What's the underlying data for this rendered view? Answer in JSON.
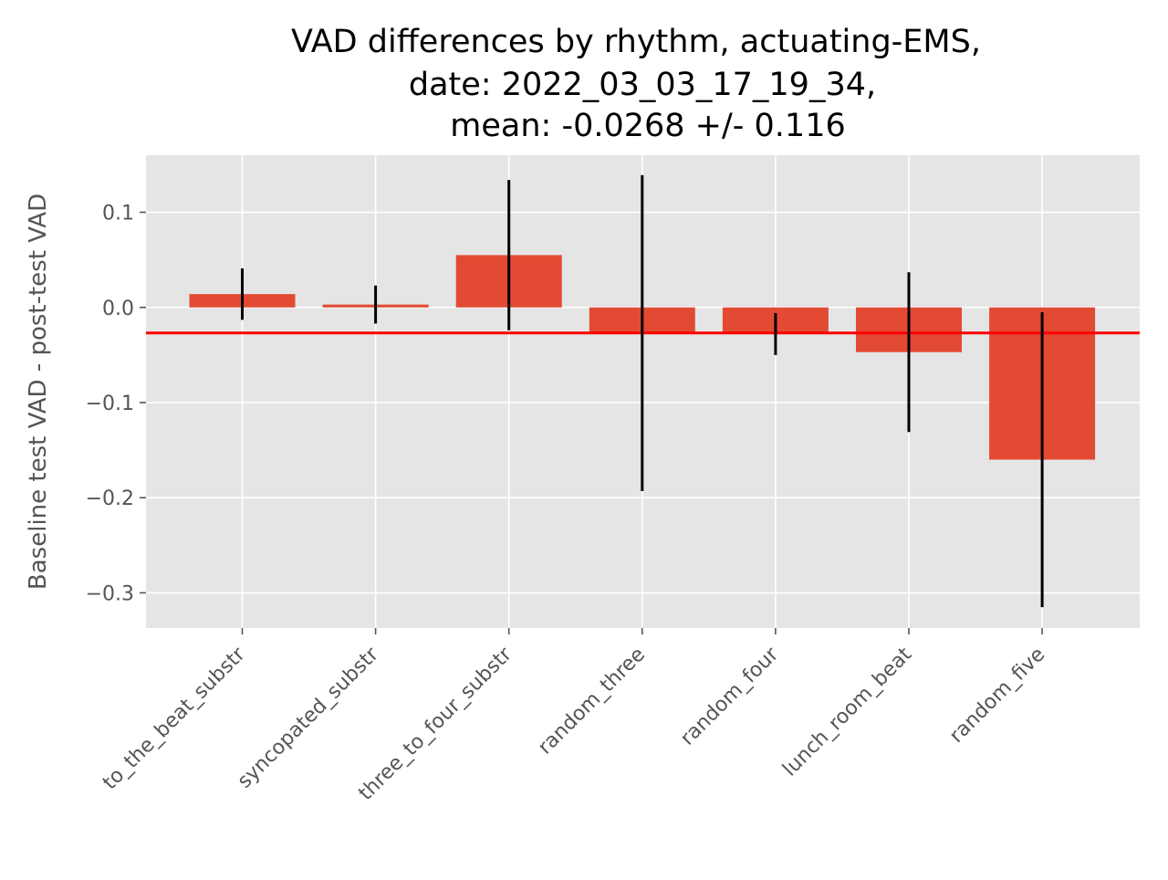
{
  "chart_data": {
    "type": "bar",
    "title_lines": [
      "VAD differences by rhythm, actuating-EMS,",
      "date: 2022_03_03_17_19_34,",
      "mean: -0.0268 +/- 0.116"
    ],
    "xlabel": "",
    "ylabel": "Baseline test VAD - post-test VAD",
    "categories": [
      "to_the_beat_substr",
      "syncopated_substr",
      "three_to_four_substr",
      "random_three",
      "random_four",
      "lunch_room_beat",
      "random_five"
    ],
    "values": [
      0.014,
      0.003,
      0.055,
      -0.027,
      -0.028,
      -0.047,
      -0.16
    ],
    "errors": [
      0.027,
      0.02,
      0.079,
      0.166,
      0.022,
      0.084,
      0.155
    ],
    "mean_line": -0.0268,
    "ylim": [
      -0.337,
      0.16
    ],
    "yticks": [
      0.1,
      0.0,
      -0.1,
      -0.2,
      -0.3
    ],
    "ytick_labels": [
      "0.1",
      "0.0",
      "−0.1",
      "−0.2",
      "−0.3"
    ],
    "grid": true,
    "style": "ggplot",
    "colors": {
      "bar": "#E24A33",
      "error_bar": "#000000",
      "mean_line": "#FF0000",
      "plot_bg": "#E5E5E5",
      "grid": "#FFFFFF"
    }
  }
}
